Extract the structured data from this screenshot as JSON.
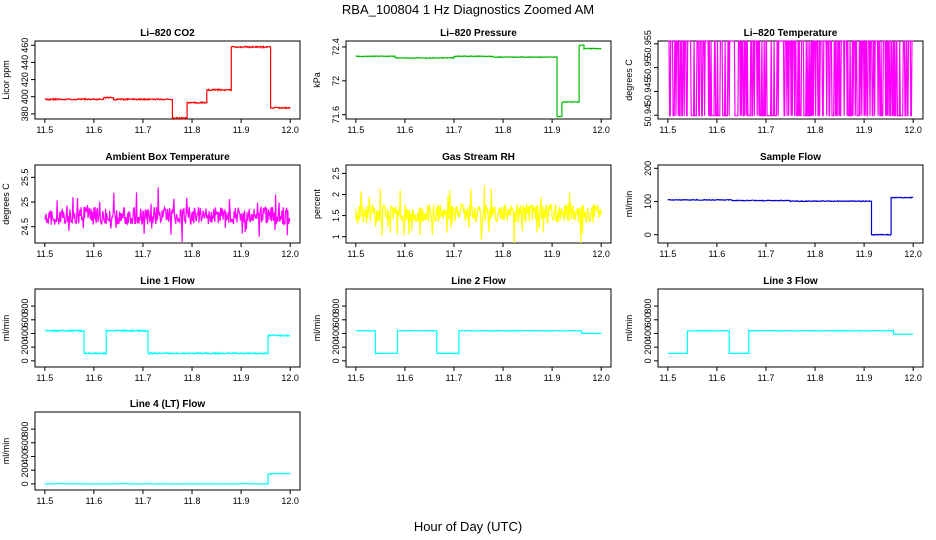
{
  "figure": {
    "title": "RBA_100804  1 Hz Diagnostics Zoomed AM",
    "xlabel": "Hour of Day (UTC)"
  },
  "chart_data": [
    {
      "type": "line",
      "title": "Li–820 CO2",
      "ylabel": "Licor ppm",
      "color": "#ff0000",
      "xlim": [
        11.5,
        12.0
      ],
      "xticks": [
        11.5,
        11.6,
        11.7,
        11.8,
        11.9,
        12.0
      ],
      "ylim": [
        374,
        465
      ],
      "yticks": [
        380,
        400,
        420,
        440,
        460
      ],
      "noise": 0.8,
      "seed": 11,
      "segments": [
        [
          11.5,
          11.62,
          397
        ],
        [
          11.62,
          11.64,
          399
        ],
        [
          11.64,
          11.76,
          397
        ],
        [
          11.76,
          11.79,
          375
        ],
        [
          11.79,
          11.83,
          393
        ],
        [
          11.83,
          11.88,
          408
        ],
        [
          11.88,
          11.96,
          458
        ],
        [
          11.96,
          12.0,
          387
        ]
      ]
    },
    {
      "type": "line",
      "title": "Li–820 Pressure",
      "ylabel": "kPa",
      "color": "#00bb00",
      "xlim": [
        11.5,
        12.0
      ],
      "xticks": [
        11.5,
        11.6,
        11.7,
        11.8,
        11.9,
        12.0
      ],
      "ylim": [
        71.55,
        72.47
      ],
      "yticks": [
        71.6,
        72.0,
        72.4
      ],
      "noise": 0.004,
      "seed": 12,
      "segments": [
        [
          11.5,
          11.58,
          72.29
        ],
        [
          11.58,
          11.7,
          72.27
        ],
        [
          11.7,
          11.78,
          72.29
        ],
        [
          11.78,
          11.91,
          72.28
        ],
        [
          11.91,
          11.92,
          71.58
        ],
        [
          11.92,
          11.955,
          71.75
        ],
        [
          11.955,
          11.965,
          72.42
        ],
        [
          11.965,
          12.0,
          72.38
        ]
      ]
    },
    {
      "type": "line",
      "title": "Li–820 Temperature",
      "ylabel": "degrees C",
      "color": "#ff00ff",
      "xlim": [
        11.5,
        12.0
      ],
      "xticks": [
        11.5,
        11.6,
        11.7,
        11.8,
        11.9,
        12.0
      ],
      "ylim": [
        50.9392,
        50.9556
      ],
      "yticks": [
        50.94,
        50.945,
        50.95,
        50.955
      ],
      "binary": [
        50.9399,
        50.9556
      ],
      "seed": 13,
      "noise": 0
    },
    {
      "type": "line",
      "title": "Ambient Box Temperature",
      "ylabel": "degrees C",
      "color": "#ff00ff",
      "xlim": [
        11.5,
        12.0
      ],
      "xticks": [
        11.5,
        11.6,
        11.7,
        11.8,
        11.9,
        12.0
      ],
      "ylim": [
        24.17,
        25.75
      ],
      "yticks": [
        24.5,
        25.0,
        25.5
      ],
      "noise": 0.18,
      "spikes": 0.45,
      "seed": 14,
      "segments": [
        [
          11.5,
          12.0,
          24.72
        ]
      ]
    },
    {
      "type": "line",
      "title": "Gas Stream RH",
      "ylabel": "percent",
      "color": "#ffff00",
      "xlim": [
        11.5,
        12.0
      ],
      "xticks": [
        11.5,
        11.6,
        11.7,
        11.8,
        11.9,
        12.0
      ],
      "ylim": [
        0.85,
        2.7
      ],
      "yticks": [
        1.0,
        1.5,
        2.0,
        2.5
      ],
      "noise": 0.22,
      "spikes": 0.6,
      "seed": 15,
      "segments": [
        [
          11.5,
          12.0,
          1.55
        ]
      ]
    },
    {
      "type": "line",
      "title": "Sample Flow",
      "ylabel": "ml/min",
      "color": "#0000cc",
      "xlim": [
        11.5,
        12.0
      ],
      "xticks": [
        11.5,
        11.6,
        11.7,
        11.8,
        11.9,
        12.0
      ],
      "ylim": [
        -25,
        210
      ],
      "yticks": [
        0,
        100,
        200
      ],
      "noise": 1.2,
      "seed": 16,
      "segments": [
        [
          11.5,
          11.63,
          105
        ],
        [
          11.63,
          11.75,
          103
        ],
        [
          11.75,
          11.915,
          101
        ],
        [
          11.915,
          11.955,
          0
        ],
        [
          11.955,
          12.0,
          112
        ]
      ]
    },
    {
      "type": "line",
      "title": "Line 1 Flow",
      "ylabel": "ml/min",
      "color": "#00ffff",
      "xlim": [
        11.5,
        12.0
      ],
      "xticks": [
        11.5,
        11.6,
        11.7,
        11.8,
        11.9,
        12.0
      ],
      "ylim": [
        -90,
        1050
      ],
      "yticks": [
        0,
        200,
        400,
        600,
        800
      ],
      "noise": 10,
      "seed": 17,
      "segments": [
        [
          11.5,
          11.58,
          440
        ],
        [
          11.58,
          11.625,
          110
        ],
        [
          11.625,
          11.71,
          440
        ],
        [
          11.71,
          11.955,
          110
        ],
        [
          11.955,
          12.0,
          370
        ]
      ]
    },
    {
      "type": "line",
      "title": "Line 2 Flow",
      "ylabel": "ml/min",
      "color": "#00ffff",
      "xlim": [
        11.5,
        12.0
      ],
      "xticks": [
        11.5,
        11.6,
        11.7,
        11.8,
        11.9,
        12.0
      ],
      "ylim": [
        -90,
        1050
      ],
      "yticks": [
        0,
        200,
        400,
        600,
        800
      ],
      "noise": 4,
      "seed": 18,
      "segments": [
        [
          11.5,
          11.54,
          440
        ],
        [
          11.54,
          11.585,
          110
        ],
        [
          11.585,
          11.665,
          440
        ],
        [
          11.665,
          11.71,
          110
        ],
        [
          11.71,
          11.96,
          440
        ],
        [
          11.96,
          12.0,
          400
        ]
      ]
    },
    {
      "type": "line",
      "title": "Line 3 Flow",
      "ylabel": "ml/min",
      "color": "#00ffff",
      "xlim": [
        11.5,
        12.0
      ],
      "xticks": [
        11.5,
        11.6,
        11.7,
        11.8,
        11.9,
        12.0
      ],
      "ylim": [
        -90,
        1050
      ],
      "yticks": [
        0,
        200,
        400,
        600,
        800
      ],
      "noise": 4,
      "seed": 19,
      "segments": [
        [
          11.5,
          11.54,
          110
        ],
        [
          11.54,
          11.625,
          440
        ],
        [
          11.625,
          11.665,
          110
        ],
        [
          11.665,
          11.96,
          440
        ],
        [
          11.96,
          12.0,
          390
        ]
      ]
    },
    {
      "type": "line",
      "title": "Line 4 (LT) Flow",
      "ylabel": "ml/min",
      "color": "#00ffff",
      "xlim": [
        11.5,
        12.0
      ],
      "xticks": [
        11.5,
        11.6,
        11.7,
        11.8,
        11.9,
        12.0
      ],
      "ylim": [
        -90,
        1050
      ],
      "yticks": [
        0,
        200,
        400,
        600,
        800
      ],
      "noise": 2,
      "seed": 20,
      "segments": [
        [
          11.5,
          11.955,
          0
        ],
        [
          11.955,
          11.96,
          140
        ],
        [
          11.96,
          12.0,
          150
        ]
      ]
    }
  ]
}
